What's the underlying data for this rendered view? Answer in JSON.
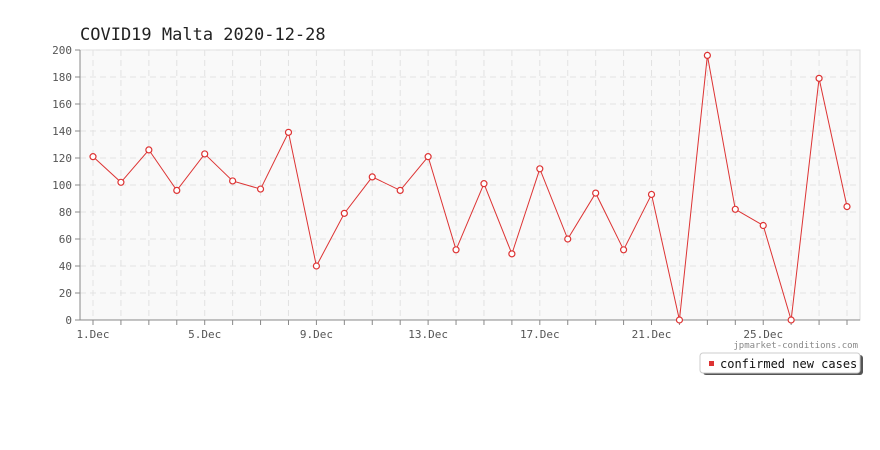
{
  "chart_data": {
    "type": "line",
    "title": "COVID19 Malta 2020-12-28",
    "xlabel": "",
    "ylabel": "",
    "x": [
      "1.Dec",
      "2.Dec",
      "3.Dec",
      "4.Dec",
      "5.Dec",
      "6.Dec",
      "7.Dec",
      "8.Dec",
      "9.Dec",
      "10.Dec",
      "11.Dec",
      "12.Dec",
      "13.Dec",
      "14.Dec",
      "15.Dec",
      "16.Dec",
      "17.Dec",
      "18.Dec",
      "19.Dec",
      "20.Dec",
      "21.Dec",
      "22.Dec",
      "23.Dec",
      "24.Dec",
      "25.Dec",
      "26.Dec",
      "27.Dec",
      "28.Dec"
    ],
    "x_tick_labels": [
      "1.Dec",
      "5.Dec",
      "9.Dec",
      "13.Dec",
      "17.Dec",
      "21.Dec",
      "25.Dec"
    ],
    "y_tick_labels": [
      "0",
      "20",
      "40",
      "60",
      "80",
      "100",
      "120",
      "140",
      "160",
      "180",
      "200"
    ],
    "ylim": [
      0,
      200
    ],
    "grid": true,
    "legend_position": "bottom-right",
    "series": [
      {
        "name": "confirmed new cases",
        "color": "#dd3333",
        "values": [
          121,
          102,
          126,
          96,
          123,
          103,
          97,
          139,
          40,
          79,
          106,
          96,
          121,
          52,
          101,
          49,
          112,
          60,
          94,
          52,
          93,
          0,
          196,
          82,
          70,
          0,
          179,
          84
        ]
      }
    ]
  },
  "watermark": "jpmarket-conditions.com"
}
